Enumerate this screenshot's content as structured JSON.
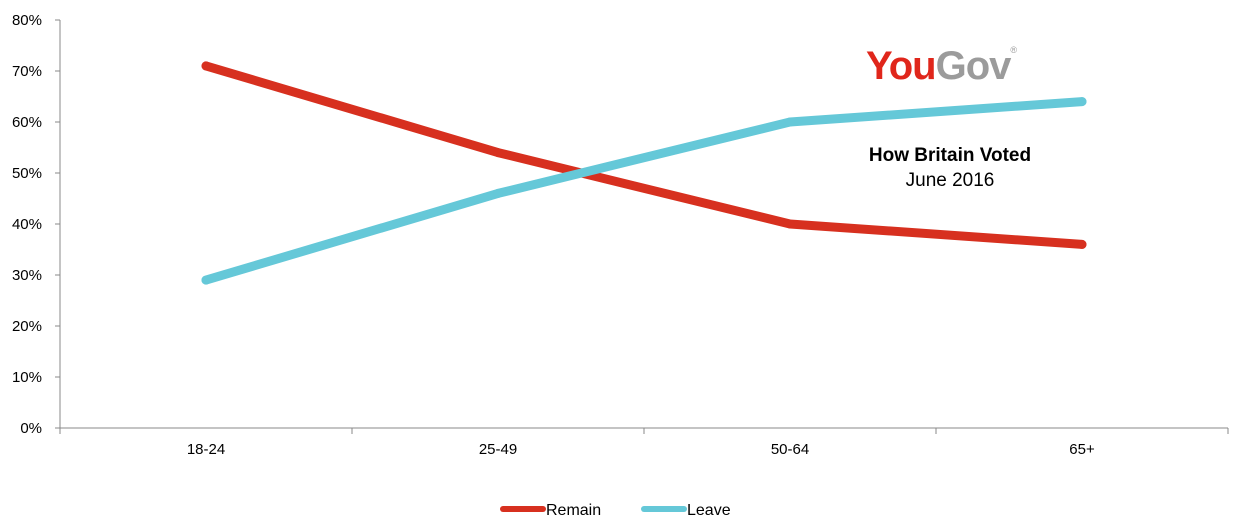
{
  "brand": {
    "part1": "You",
    "part2": "Gov",
    "mark": "®",
    "color1": "#e0261b",
    "color2": "#9b9b9b"
  },
  "annotation": {
    "line1": "How Britain Voted",
    "line2": "June 2016"
  },
  "chart_data": {
    "type": "line",
    "categories": [
      "18-24",
      "25-49",
      "50-64",
      "65+"
    ],
    "series": [
      {
        "name": "Remain",
        "values": [
          71,
          54,
          40,
          36
        ],
        "color": "#d7301f"
      },
      {
        "name": "Leave",
        "values": [
          29,
          46,
          60,
          64
        ],
        "color": "#65c8d8"
      }
    ],
    "ylim": [
      0,
      80
    ],
    "yticks": [
      "0%",
      "10%",
      "20%",
      "30%",
      "40%",
      "50%",
      "60%",
      "70%",
      "80%"
    ],
    "grid": false,
    "legend": "bottom-center"
  }
}
